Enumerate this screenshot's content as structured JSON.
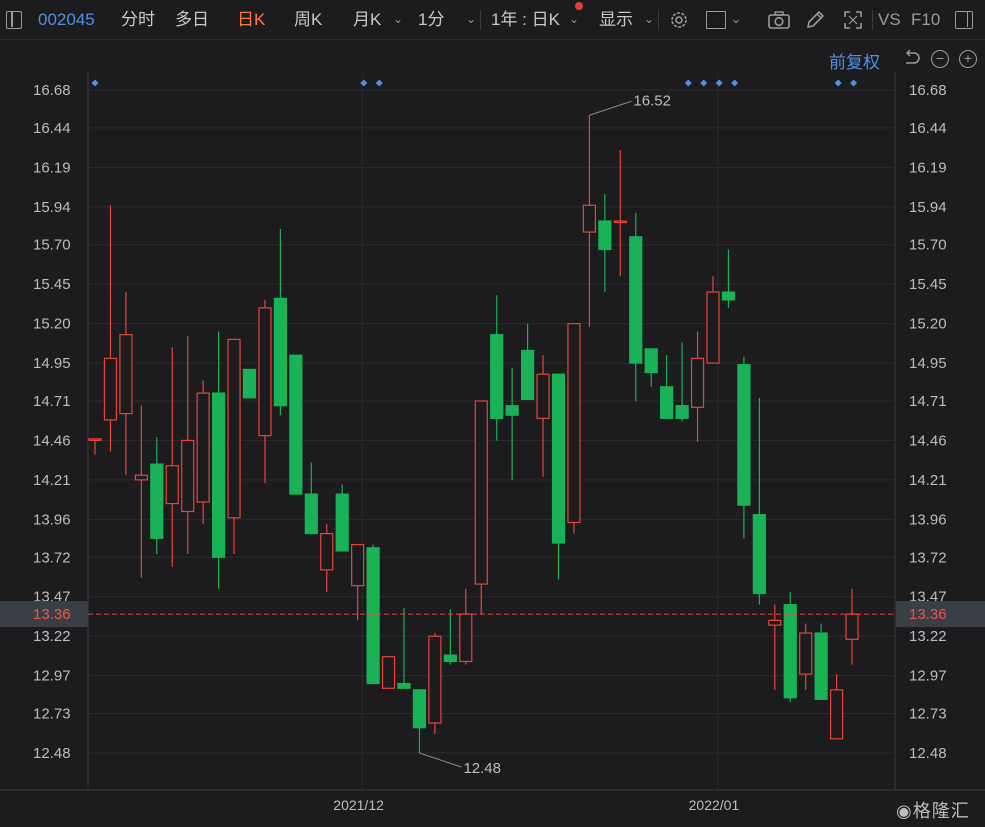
{
  "toolbar": {
    "stock_code": "002045",
    "tabs": [
      "分时",
      "多日",
      "日K",
      "周K"
    ],
    "active_tab": "日K",
    "month_k": "月K",
    "minute": "1分",
    "range": "1年 : 日K",
    "display": "显示",
    "vs": "VS",
    "f10": "F10",
    "adjust": "前复权"
  },
  "chart_data": {
    "type": "candlestick",
    "y_ticks": [
      16.68,
      16.44,
      16.19,
      15.94,
      15.7,
      15.45,
      15.2,
      14.95,
      14.71,
      14.46,
      14.21,
      13.96,
      13.72,
      13.47,
      13.22,
      12.97,
      12.73,
      12.48
    ],
    "ylim": [
      12.48,
      16.68
    ],
    "x_labels": [
      "2021/12",
      "2022/01"
    ],
    "current_price": 13.36,
    "max_label": "16.52",
    "min_label": "12.48",
    "up_color": "#e8443a",
    "down_color": "#19b257",
    "candles": [
      {
        "o": 14.47,
        "c": 14.47,
        "h": 14.47,
        "l": 14.37
      },
      {
        "o": 14.59,
        "c": 14.98,
        "h": 15.95,
        "l": 14.39
      },
      {
        "o": 14.63,
        "c": 15.13,
        "h": 15.4,
        "l": 14.24
      },
      {
        "o": 14.21,
        "c": 14.24,
        "h": 14.68,
        "l": 13.59
      },
      {
        "o": 14.31,
        "c": 13.84,
        "h": 14.48,
        "l": 13.74
      },
      {
        "o": 14.06,
        "c": 14.3,
        "h": 15.05,
        "l": 13.66
      },
      {
        "o": 14.01,
        "c": 14.46,
        "h": 15.12,
        "l": 13.74
      },
      {
        "o": 14.07,
        "c": 14.76,
        "h": 14.84,
        "l": 13.93
      },
      {
        "o": 14.76,
        "c": 13.72,
        "h": 15.15,
        "l": 13.52
      },
      {
        "o": 13.97,
        "c": 15.1,
        "h": 15.1,
        "l": 13.74
      },
      {
        "o": 14.91,
        "c": 14.73,
        "h": 14.91,
        "l": 14.73
      },
      {
        "o": 14.49,
        "c": 15.3,
        "h": 15.35,
        "l": 14.19
      },
      {
        "o": 15.36,
        "c": 14.68,
        "h": 15.8,
        "l": 14.62
      },
      {
        "o": 15.0,
        "c": 14.12,
        "h": 15.0,
        "l": 14.12
      },
      {
        "o": 14.12,
        "c": 13.87,
        "h": 14.32,
        "l": 13.87
      },
      {
        "o": 13.64,
        "c": 13.87,
        "h": 13.93,
        "l": 13.5
      },
      {
        "o": 14.12,
        "c": 13.76,
        "h": 14.18,
        "l": 13.76
      },
      {
        "o": 13.54,
        "c": 13.8,
        "h": 13.8,
        "l": 13.32
      },
      {
        "o": 13.78,
        "c": 12.92,
        "h": 13.8,
        "l": 12.92
      },
      {
        "o": 12.89,
        "c": 13.09,
        "h": 13.09,
        "l": 12.89
      },
      {
        "o": 12.92,
        "c": 12.89,
        "h": 13.4,
        "l": 12.89
      },
      {
        "o": 12.88,
        "c": 12.64,
        "h": 12.88,
        "l": 12.48
      },
      {
        "o": 12.67,
        "c": 13.22,
        "h": 13.24,
        "l": 12.6
      },
      {
        "o": 13.1,
        "c": 13.06,
        "h": 13.39,
        "l": 13.04
      },
      {
        "o": 13.06,
        "c": 13.36,
        "h": 13.52,
        "l": 13.04
      },
      {
        "o": 13.55,
        "c": 14.71,
        "h": 14.71,
        "l": 13.36
      },
      {
        "o": 15.13,
        "c": 14.6,
        "h": 15.38,
        "l": 14.46
      },
      {
        "o": 14.68,
        "c": 14.62,
        "h": 14.92,
        "l": 14.21
      },
      {
        "o": 15.03,
        "c": 14.72,
        "h": 15.2,
        "l": 14.72
      },
      {
        "o": 14.6,
        "c": 14.88,
        "h": 15.0,
        "l": 14.23
      },
      {
        "o": 14.88,
        "c": 13.81,
        "h": 14.88,
        "l": 13.58
      },
      {
        "o": 13.94,
        "c": 15.2,
        "h": 15.2,
        "l": 13.87
      },
      {
        "o": 15.78,
        "c": 15.95,
        "h": 16.52,
        "l": 15.18
      },
      {
        "o": 15.85,
        "c": 15.67,
        "h": 16.02,
        "l": 15.4
      },
      {
        "o": 15.85,
        "c": 15.85,
        "h": 16.3,
        "l": 15.5
      },
      {
        "o": 15.75,
        "c": 14.95,
        "h": 15.9,
        "l": 14.71
      },
      {
        "o": 15.04,
        "c": 14.89,
        "h": 15.04,
        "l": 14.8
      },
      {
        "o": 14.8,
        "c": 14.6,
        "h": 15.0,
        "l": 14.6
      },
      {
        "o": 14.68,
        "c": 14.6,
        "h": 15.08,
        "l": 14.58
      },
      {
        "o": 14.67,
        "c": 14.98,
        "h": 15.15,
        "l": 14.45
      },
      {
        "o": 14.95,
        "c": 15.4,
        "h": 15.5,
        "l": 14.95
      },
      {
        "o": 15.4,
        "c": 15.35,
        "h": 15.67,
        "l": 15.3
      },
      {
        "o": 14.94,
        "c": 14.05,
        "h": 14.99,
        "l": 13.84
      },
      {
        "o": 13.99,
        "c": 13.49,
        "h": 14.73,
        "l": 13.42
      },
      {
        "o": 13.29,
        "c": 13.32,
        "h": 13.42,
        "l": 12.88
      },
      {
        "o": 13.42,
        "c": 12.83,
        "h": 13.5,
        "l": 12.8
      },
      {
        "o": 12.98,
        "c": 13.24,
        "h": 13.3,
        "l": 12.88
      },
      {
        "o": 13.24,
        "c": 12.82,
        "h": 13.3,
        "l": 12.82
      },
      {
        "o": 12.57,
        "c": 12.88,
        "h": 12.98,
        "l": 12.57
      },
      {
        "o": 13.2,
        "c": 13.36,
        "h": 13.52,
        "l": 13.04
      }
    ]
  }
}
